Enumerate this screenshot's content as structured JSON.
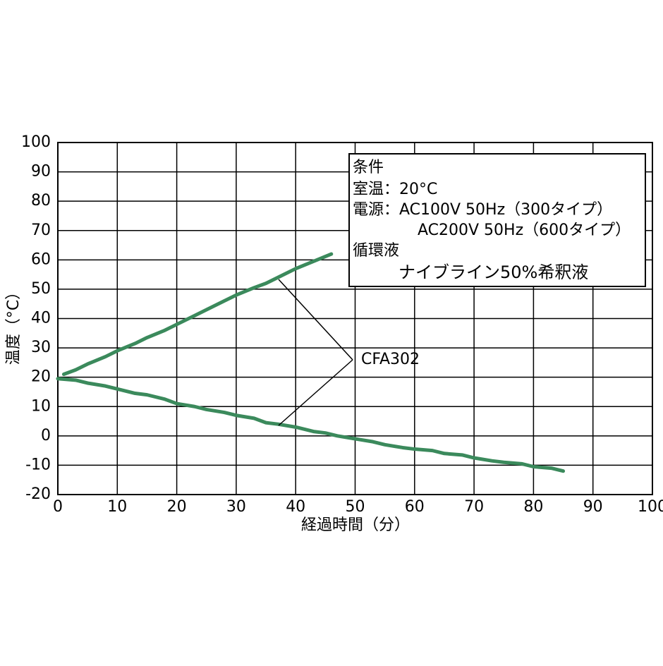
{
  "chart_data": {
    "type": "line",
    "xlabel": "経過時間（分）",
    "ylabel": "温度（°C）",
    "xlim": [
      0,
      100
    ],
    "xticks": [
      0,
      10,
      20,
      30,
      40,
      50,
      60,
      70,
      80,
      90,
      100
    ],
    "ylim": [
      -20,
      100
    ],
    "yticks": [
      -20,
      -10,
      0,
      10,
      20,
      30,
      40,
      50,
      60,
      70,
      80,
      90,
      100
    ],
    "grid": true,
    "series": [
      {
        "color": "#3b8a5c",
        "x": [
          1,
          3,
          5,
          8,
          10,
          13,
          15,
          18,
          20,
          23,
          25,
          28,
          30,
          33,
          35,
          38,
          40,
          43,
          46
        ],
        "values": [
          21,
          22.5,
          24.5,
          27,
          29,
          31.5,
          33.5,
          36,
          38,
          41,
          43,
          46,
          48,
          50.5,
          52,
          55,
          57,
          59.5,
          62
        ]
      },
      {
        "color": "#3b8a5c",
        "x": [
          0,
          3,
          5,
          8,
          10,
          13,
          15,
          18,
          20,
          23,
          25,
          28,
          30,
          33,
          35,
          37,
          40,
          43,
          45,
          47,
          50,
          53,
          55,
          58,
          60,
          63,
          65,
          68,
          70,
          73,
          75,
          78,
          80,
          83,
          85
        ],
        "values": [
          19.5,
          19,
          18,
          17,
          16,
          14.5,
          14,
          12.5,
          11,
          10,
          9,
          8,
          7,
          6,
          4.5,
          4,
          3,
          1.5,
          1,
          0,
          -1,
          -2,
          -3,
          -4,
          -4.5,
          -5,
          -6,
          -6.5,
          -7.5,
          -8.5,
          -9,
          -9.5,
          -10.5,
          -11,
          -12
        ]
      }
    ],
    "series_label": "CFA302",
    "conditions": [
      "条件",
      "室温：20°C",
      "電源：AC100V 50Hz（300タイプ）",
      "AC200V 50Hz（600タイプ）",
      "循環液",
      "ナイブライン50%希釈液"
    ]
  }
}
